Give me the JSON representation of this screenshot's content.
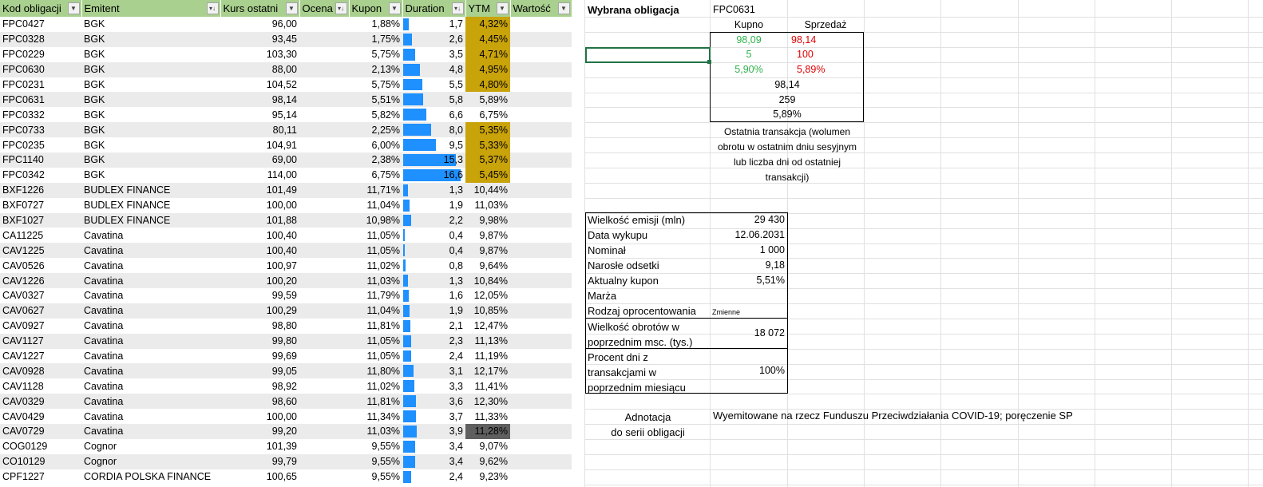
{
  "table": {
    "headers": [
      "Kod obligacji",
      "Emitent",
      "Kurs ostatni",
      "Ocena",
      "Kupon",
      "Duration",
      "YTM",
      "Wartość"
    ],
    "rows": [
      {
        "kod": "FPC0427",
        "emitent": "BGK",
        "kurs": "96,00",
        "kupon": "1,88%",
        "duration": "1,7",
        "ytm": "4,32%",
        "dur_val": 1.7,
        "ytm_hl": "gold"
      },
      {
        "kod": "FPC0328",
        "emitent": "BGK",
        "kurs": "93,45",
        "kupon": "1,75%",
        "duration": "2,6",
        "ytm": "4,45%",
        "dur_val": 2.6,
        "ytm_hl": "gold"
      },
      {
        "kod": "FPC0229",
        "emitent": "BGK",
        "kurs": "103,30",
        "kupon": "5,75%",
        "duration": "3,5",
        "ytm": "4,71%",
        "dur_val": 3.5,
        "ytm_hl": "gold"
      },
      {
        "kod": "FPC0630",
        "emitent": "BGK",
        "kurs": "88,00",
        "kupon": "2,13%",
        "duration": "4,8",
        "ytm": "4,95%",
        "dur_val": 4.8,
        "ytm_hl": "gold"
      },
      {
        "kod": "FPC0231",
        "emitent": "BGK",
        "kurs": "104,52",
        "kupon": "5,75%",
        "duration": "5,5",
        "ytm": "4,80%",
        "dur_val": 5.5,
        "ytm_hl": "gold"
      },
      {
        "kod": "FPC0631",
        "emitent": "BGK",
        "kurs": "98,14",
        "kupon": "5,51%",
        "duration": "5,8",
        "ytm": "5,89%",
        "dur_val": 5.8,
        "ytm_hl": ""
      },
      {
        "kod": "FPC0332",
        "emitent": "BGK",
        "kurs": "95,14",
        "kupon": "5,82%",
        "duration": "6,6",
        "ytm": "6,75%",
        "dur_val": 6.6,
        "ytm_hl": ""
      },
      {
        "kod": "FPC0733",
        "emitent": "BGK",
        "kurs": "80,11",
        "kupon": "2,25%",
        "duration": "8,0",
        "ytm": "5,35%",
        "dur_val": 8.0,
        "ytm_hl": "gold"
      },
      {
        "kod": "FPC0235",
        "emitent": "BGK",
        "kurs": "104,91",
        "kupon": "6,00%",
        "duration": "9,5",
        "ytm": "5,33%",
        "dur_val": 9.5,
        "ytm_hl": "gold"
      },
      {
        "kod": "FPC1140",
        "emitent": "BGK",
        "kurs": "69,00",
        "kupon": "2,38%",
        "duration": "15,3",
        "ytm": "5,37%",
        "dur_val": 15.3,
        "ytm_hl": "gold"
      },
      {
        "kod": "FPC0342",
        "emitent": "BGK",
        "kurs": "114,00",
        "kupon": "6,75%",
        "duration": "16,6",
        "ytm": "5,45%",
        "dur_val": 16.6,
        "ytm_hl": "gold"
      },
      {
        "kod": "BXF1226",
        "emitent": "BUDLEX FINANCE",
        "kurs": "101,49",
        "kupon": "11,71%",
        "duration": "1,3",
        "ytm": "10,44%",
        "dur_val": 1.3,
        "ytm_hl": ""
      },
      {
        "kod": "BXF0727",
        "emitent": "BUDLEX FINANCE",
        "kurs": "100,00",
        "kupon": "11,04%",
        "duration": "1,9",
        "ytm": "11,03%",
        "dur_val": 1.9,
        "ytm_hl": ""
      },
      {
        "kod": "BXF1027",
        "emitent": "BUDLEX FINANCE",
        "kurs": "101,88",
        "kupon": "10,98%",
        "duration": "2,2",
        "ytm": "9,98%",
        "dur_val": 2.2,
        "ytm_hl": ""
      },
      {
        "kod": "CA11225",
        "emitent": "Cavatina",
        "kurs": "100,40",
        "kupon": "11,05%",
        "duration": "0,4",
        "ytm": "9,87%",
        "dur_val": 0.4,
        "ytm_hl": ""
      },
      {
        "kod": "CAV1225",
        "emitent": "Cavatina",
        "kurs": "100,40",
        "kupon": "11,05%",
        "duration": "0,4",
        "ytm": "9,87%",
        "dur_val": 0.4,
        "ytm_hl": ""
      },
      {
        "kod": "CAV0526",
        "emitent": "Cavatina",
        "kurs": "100,97",
        "kupon": "11,02%",
        "duration": "0,8",
        "ytm": "9,64%",
        "dur_val": 0.8,
        "ytm_hl": ""
      },
      {
        "kod": "CAV1226",
        "emitent": "Cavatina",
        "kurs": "100,20",
        "kupon": "11,03%",
        "duration": "1,3",
        "ytm": "10,84%",
        "dur_val": 1.3,
        "ytm_hl": ""
      },
      {
        "kod": "CAV0327",
        "emitent": "Cavatina",
        "kurs": "99,59",
        "kupon": "11,79%",
        "duration": "1,6",
        "ytm": "12,05%",
        "dur_val": 1.6,
        "ytm_hl": ""
      },
      {
        "kod": "CAV0627",
        "emitent": "Cavatina",
        "kurs": "100,29",
        "kupon": "11,04%",
        "duration": "1,9",
        "ytm": "10,85%",
        "dur_val": 1.9,
        "ytm_hl": ""
      },
      {
        "kod": "CAV0927",
        "emitent": "Cavatina",
        "kurs": "98,80",
        "kupon": "11,81%",
        "duration": "2,1",
        "ytm": "12,47%",
        "dur_val": 2.1,
        "ytm_hl": ""
      },
      {
        "kod": "CAV1127",
        "emitent": "Cavatina",
        "kurs": "99,80",
        "kupon": "11,05%",
        "duration": "2,3",
        "ytm": "11,13%",
        "dur_val": 2.3,
        "ytm_hl": ""
      },
      {
        "kod": "CAV1227",
        "emitent": "Cavatina",
        "kurs": "99,69",
        "kupon": "11,05%",
        "duration": "2,4",
        "ytm": "11,19%",
        "dur_val": 2.4,
        "ytm_hl": ""
      },
      {
        "kod": "CAV0928",
        "emitent": "Cavatina",
        "kurs": "99,05",
        "kupon": "11,80%",
        "duration": "3,1",
        "ytm": "12,17%",
        "dur_val": 3.1,
        "ytm_hl": ""
      },
      {
        "kod": "CAV1128",
        "emitent": "Cavatina",
        "kurs": "98,92",
        "kupon": "11,02%",
        "duration": "3,3",
        "ytm": "11,41%",
        "dur_val": 3.3,
        "ytm_hl": ""
      },
      {
        "kod": "CAV0329",
        "emitent": "Cavatina",
        "kurs": "98,60",
        "kupon": "11,81%",
        "duration": "3,6",
        "ytm": "12,30%",
        "dur_val": 3.6,
        "ytm_hl": ""
      },
      {
        "kod": "CAV0429",
        "emitent": "Cavatina",
        "kurs": "100,00",
        "kupon": "11,34%",
        "duration": "3,7",
        "ytm": "11,33%",
        "dur_val": 3.7,
        "ytm_hl": ""
      },
      {
        "kod": "CAV0729",
        "emitent": "Cavatina",
        "kurs": "99,20",
        "kupon": "11,03%",
        "duration": "3,9",
        "ytm": "11,28%",
        "dur_val": 3.9,
        "ytm_hl": "dark"
      },
      {
        "kod": "COG0129",
        "emitent": "Cognor",
        "kurs": "101,39",
        "kupon": "9,55%",
        "duration": "3,4",
        "ytm": "9,07%",
        "dur_val": 3.4,
        "ytm_hl": ""
      },
      {
        "kod": "CO10129",
        "emitent": "Cognor",
        "kurs": "99,79",
        "kupon": "9,55%",
        "duration": "3,4",
        "ytm": "9,62%",
        "dur_val": 3.4,
        "ytm_hl": ""
      },
      {
        "kod": "CPF1227",
        "emitent": "CORDIA POLSKA FINANCE",
        "kurs": "100,65",
        "kupon": "9,55%",
        "duration": "2,4",
        "ytm": "9,23%",
        "dur_val": 2.4,
        "ytm_hl": ""
      }
    ],
    "duration_max": 16.6
  },
  "panel": {
    "selected_label": "Wybrana obligacja",
    "selected_value": "FPC0631",
    "kupno_label": "Kupno",
    "sprzedaz_label": "Sprzedaż",
    "kupno_price": "98,09",
    "sprzedaz_price": "98,14",
    "kupno_volume": "5",
    "sprzedaz_volume": "100",
    "kupno_ytm": "5,90%",
    "sprzedaz_ytm": "5,89%",
    "last_price": "98,14",
    "last_volume": "259",
    "last_ytm": "5,89%",
    "last_note": [
      "Ostatnia transakcja (wolumen",
      "obrotu w ostatnim dniu sesyjnym",
      "lub liczba dni od ostatniej",
      "transakcji)"
    ],
    "info": [
      {
        "label": "Wielkość emisji (mln)",
        "value": "29 430"
      },
      {
        "label": "Data wykupu",
        "value": "12.06.2031"
      },
      {
        "label": "Nominał",
        "value": "1 000"
      },
      {
        "label": "Narosłe odsetki",
        "value": "9,18"
      },
      {
        "label": "Aktualny kupon",
        "value": "5,51%"
      },
      {
        "label": "Marża",
        "value": ""
      },
      {
        "label": "Rodzaj oprocentowania",
        "value": "Zmienne"
      }
    ],
    "obroty_label": [
      "Wielkość obrotów w",
      "poprzednim msc. (tys.)"
    ],
    "obroty_value": "18 072",
    "procent_label": [
      "Procent dni z",
      "transakcjami w",
      "poprzednim miesiącu"
    ],
    "procent_value": "100%",
    "adnotacja_label": [
      "Adnotacja",
      "do serii obligacji"
    ],
    "adnotacja_value": "Wyemitowane na rzecz Funduszu Przeciwdziałania COVID-19; poręczenie SP"
  },
  "colors": {
    "header_green": "#a9d08e",
    "bar_blue": "#1e90ff",
    "ytm_gold": "#c9a30a",
    "ytm_dark": "#5f5f5f",
    "buy_green": "#2eb24a",
    "sell_red": "#e00000"
  }
}
